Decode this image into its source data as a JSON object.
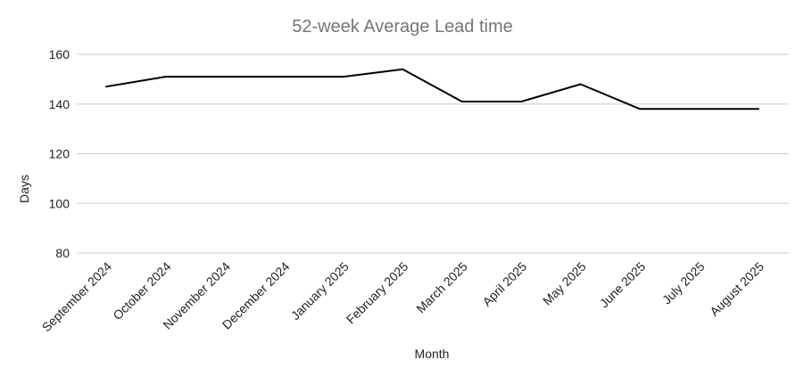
{
  "chart_data": {
    "type": "line",
    "title": "52-week Average Lead time",
    "xlabel": "Month",
    "ylabel": "Days",
    "categories": [
      "September 2024",
      "October 2024",
      "November 2024",
      "December 2024",
      "January 2025",
      "February 2025",
      "March 2025",
      "April 2025",
      "May 2025",
      "June 2025",
      "July 2025",
      "August 2025"
    ],
    "series": [
      {
        "values": [
          147,
          151,
          151,
          151,
          151,
          154,
          141,
          141,
          148,
          138,
          138,
          138
        ]
      }
    ],
    "ylim": [
      80,
      160
    ],
    "yticks": [
      80,
      100,
      120,
      140,
      160
    ],
    "grid": true,
    "legend": "none",
    "colors": {
      "line": "#000000",
      "grid": "#cccccc",
      "title": "#757575"
    }
  }
}
